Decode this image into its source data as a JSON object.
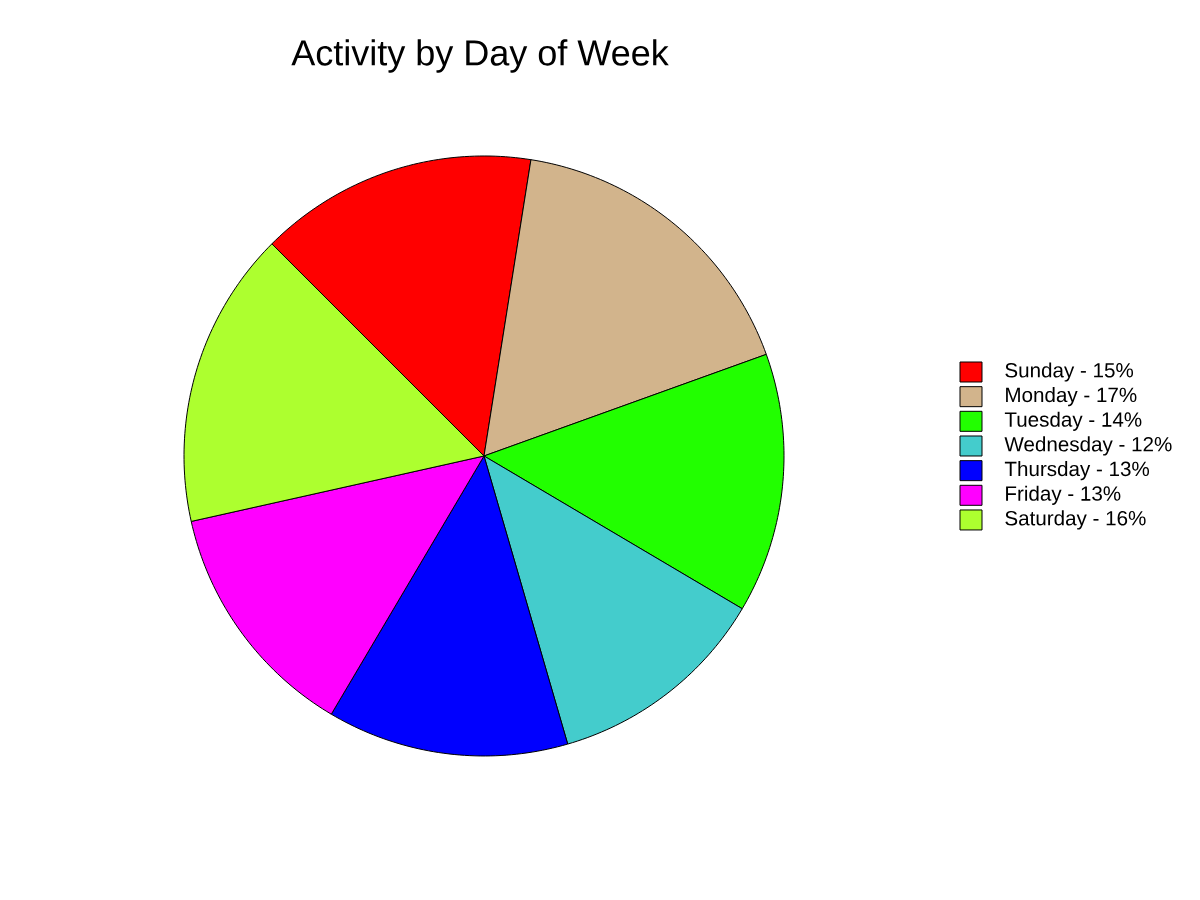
{
  "chart_data": {
    "type": "pie",
    "title": "Activity by Day of Week",
    "categories": [
      "Sunday - 15%",
      "Monday - 17%",
      "Tuesday - 14%",
      "Wednesday - 12%",
      "Thursday - 13%",
      "Friday - 13%",
      "Saturday - 16%"
    ],
    "values": [
      15,
      17,
      14,
      12,
      13,
      13,
      16
    ],
    "colors": [
      "#ff0000",
      "#d2b48c",
      "#22ff00",
      "#44cccc",
      "#0000ff",
      "#ff00ff",
      "#adff2f"
    ],
    "legend": "right"
  }
}
